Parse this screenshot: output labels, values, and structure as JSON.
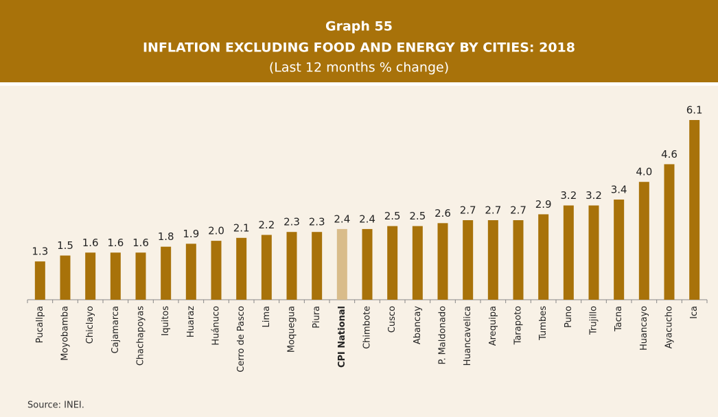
{
  "chart_data": {
    "type": "bar",
    "label": "Graph 55",
    "title": "INFLATION EXCLUDING FOOD AND ENERGY BY CITIES: 2018",
    "subtitle": "(Last 12 months % change)",
    "source": "Source: INEI.",
    "categories": [
      "Pucallpa",
      "Moyobamba",
      "Chiclayo",
      "Cajamarca",
      "Chachapoyas",
      "Iquitos",
      "Huaraz",
      "Huánuco",
      "Cerro de Pasco",
      "Lima",
      "Moquegua",
      "Piura",
      "CPI National",
      "Chimbote",
      "Cusco",
      "Abancay",
      "P. Maldonado",
      "Huancavelica",
      "Arequipa",
      "Tarapoto",
      "Tumbes",
      "Puno",
      "Trujillo",
      "Tacna",
      "Huancayo",
      "Ayacucho",
      "Ica"
    ],
    "values": [
      1.3,
      1.5,
      1.6,
      1.6,
      1.6,
      1.8,
      1.9,
      2.0,
      2.1,
      2.2,
      2.3,
      2.3,
      2.4,
      2.4,
      2.5,
      2.5,
      2.6,
      2.7,
      2.7,
      2.7,
      2.9,
      3.2,
      3.2,
      3.4,
      4.0,
      4.6,
      6.1
    ],
    "value_labels": [
      "1.3",
      "1.5",
      "1.6",
      "1.6",
      "1.6",
      "1.8",
      "1.9",
      "2.0",
      "2.1",
      "2.2",
      "2.3",
      "2.3",
      "2.4",
      "2.4",
      "2.5",
      "2.5",
      "2.6",
      "2.7",
      "2.7",
      "2.7",
      "2.9",
      "3.2",
      "3.2",
      "3.4",
      "4.0",
      "4.6",
      "6.1"
    ],
    "color": "#a8720a",
    "colors": [
      "#a8720a",
      "#a8720a",
      "#a8720a",
      "#a8720a",
      "#a8720a",
      "#a8720a",
      "#a8720a",
      "#a8720a",
      "#a8720a",
      "#a8720a",
      "#a8720a",
      "#a8720a",
      "#d9bc8a",
      "#a8720a",
      "#a8720a",
      "#a8720a",
      "#a8720a",
      "#a8720a",
      "#a8720a",
      "#a8720a",
      "#a8720a",
      "#a8720a",
      "#a8720a",
      "#a8720a",
      "#a8720a",
      "#a8720a",
      "#a8720a"
    ]
  }
}
